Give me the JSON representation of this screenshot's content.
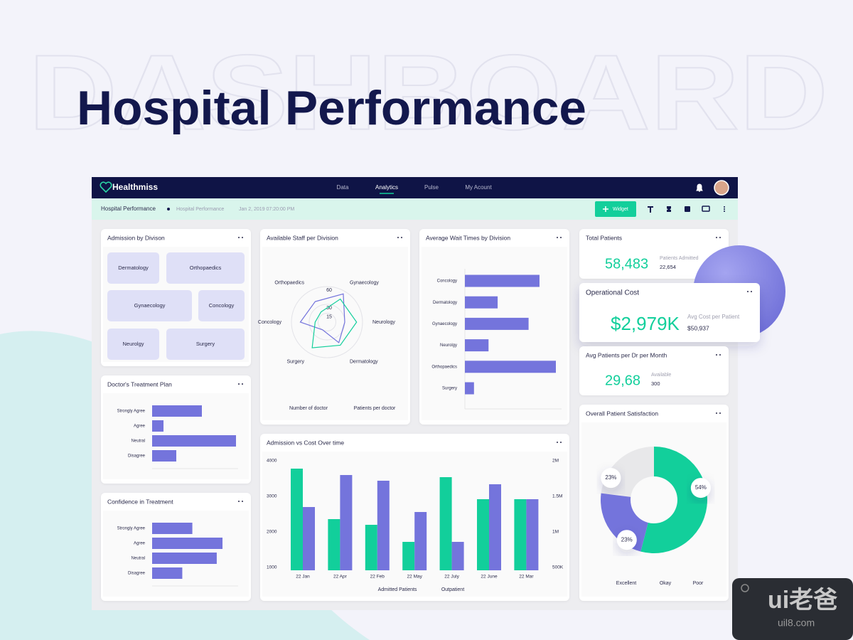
{
  "hero": {
    "watermark": "DASHBOARD",
    "title": "Hospital Performance"
  },
  "nav": {
    "brand": "Healthmiss",
    "links": [
      "Data",
      "Analytics",
      "Pulse",
      "My Acount"
    ]
  },
  "toolbar": {
    "page": "Hospital Performance",
    "breadcrumb": "Hospital Performance",
    "date": "Jan 2, 2019 07:20:00 PM",
    "button": "Widget"
  },
  "admission_by_division": {
    "title": "Admission by Divison",
    "tiles": [
      "Dermatology",
      "Orthopaedics",
      "Gynaecology",
      "Concology",
      "Neurolgy",
      "Surgery"
    ]
  },
  "treatment_plan": {
    "type": "hbar",
    "title": "Doctor's Treatment Plan",
    "categories": [
      "Strongly Agree",
      "Agree",
      "Neutral",
      "Disagree"
    ],
    "values": [
      35,
      8,
      59,
      17
    ],
    "color": "#7474dc"
  },
  "confidence": {
    "type": "hbar",
    "title": "Confidence in Treatment",
    "categories": [
      "Strongly Agree",
      "Agree",
      "Neutral",
      "Disagree"
    ],
    "values": [
      28,
      49,
      45,
      21
    ],
    "color": "#7474dc"
  },
  "staff": {
    "type": "radar",
    "title": "Available Staff per Division",
    "categories": [
      "Orthopaedics",
      "Gynaecology",
      "Neurology",
      "Dermatology",
      "Surgery",
      "Concology"
    ],
    "rticks": [
      15,
      30,
      60
    ],
    "series": [
      {
        "name": "Number of doctor",
        "color": "#7474dc",
        "values": [
          40,
          55,
          30,
          40,
          15,
          45
        ]
      },
      {
        "name": "Patients per doctor",
        "color": "#12cf9b",
        "values": [
          20,
          45,
          50,
          45,
          50,
          20
        ]
      }
    ]
  },
  "wait_times": {
    "type": "hbar",
    "title": "Average Wait Times by Division",
    "categories": [
      "Concology",
      "Dermatology",
      "Gynaecology",
      "Neurolgy",
      "Orthopaedics",
      "Surgery"
    ],
    "values": [
      41,
      18,
      35,
      13,
      50,
      5
    ],
    "color": "#7474dc"
  },
  "admission_cost": {
    "type": "combo",
    "title": "Admission vs Cost Over time",
    "categories": [
      "22 Jan",
      "22 Apr",
      "22 Feb",
      "22 May",
      "22 July",
      "22 June",
      "22 Mar"
    ],
    "ylim": [
      1000,
      4000
    ],
    "yticks": [
      1000,
      2000,
      3000,
      4000
    ],
    "y2lim": [
      500000,
      2000000
    ],
    "y2ticks": [
      {
        "value": 500000,
        "label": "500K"
      },
      {
        "value": 1000000,
        "label": "1M"
      },
      {
        "value": 1500000,
        "label": "1.5M"
      },
      {
        "value": 2000000,
        "label": "2M"
      }
    ],
    "series": [
      {
        "name": "Admitted Patients",
        "color": "#12cf9b",
        "values": [
          3780,
          2360,
          2200,
          1720,
          3540,
          2920,
          2920
        ]
      },
      {
        "name": "Outpatient",
        "color": "#7474dc",
        "axis": "y2",
        "values": [
          1350000,
          1800000,
          1720000,
          1280000,
          860000,
          1670000,
          1460000
        ]
      }
    ]
  },
  "total_patients": {
    "title": "Total Patients",
    "value": "58,483",
    "sub_label": "Patients Admitted",
    "sub_value": "22,654"
  },
  "operational_cost": {
    "title": "Operational Cost",
    "value": "$2,979K",
    "sub_label": "Avg Cost per Patient",
    "sub_value": "$50,937"
  },
  "avg_patients": {
    "title": "Avg Patients per Dr per Month",
    "value": "29,68",
    "sub_label": "Available",
    "sub_value": "300"
  },
  "satisfaction": {
    "type": "donut",
    "title": "Overall Patient Satisfaction",
    "categories": [
      "Excellent",
      "Okay",
      "Poor"
    ],
    "values": [
      54,
      23,
      23
    ],
    "value_labels": [
      "54%",
      "23%",
      "23%"
    ],
    "colors": [
      "#12cf9b",
      "#e8e8ea",
      "#7474dc"
    ]
  },
  "badge": {
    "logo": "ui老爸",
    "site": "uil8.com"
  }
}
